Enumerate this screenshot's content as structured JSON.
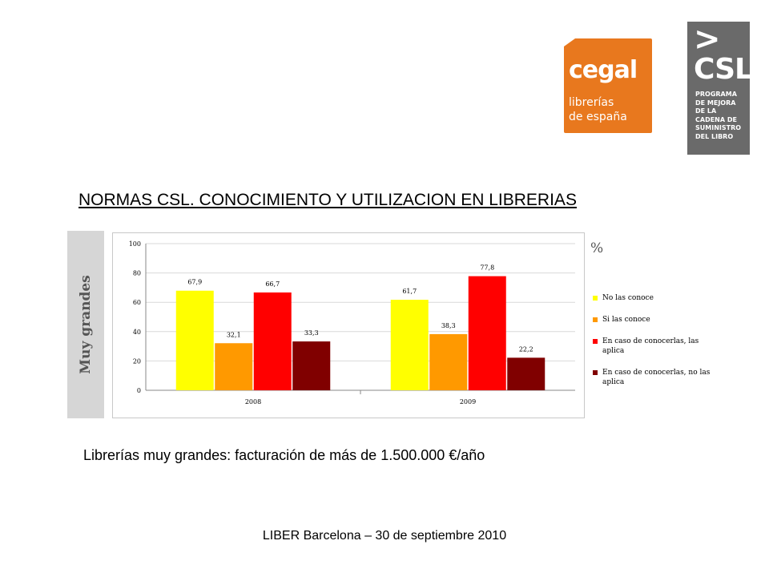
{
  "logos": {
    "cegal": {
      "brand": "cegal",
      "line1": "librerías",
      "line2": "de españa"
    },
    "csl": {
      "arrow": ">",
      "name": "CSL",
      "description": [
        "PROGRAMA",
        "DE MEJORA",
        "DE LA",
        "CADENA DE",
        "SUMINISTRO",
        "DEL LIBRO"
      ]
    }
  },
  "slide": {
    "title": "NORMAS CSL. CONOCIMIENTO Y UTILIZACION EN LIBRERIAS",
    "side_label": "Muy grandes",
    "unit_label": "%",
    "caption": "Librerías muy grandes: facturación de más de 1.500.000 €/año",
    "footer": "LIBER Barcelona – 30 de septiembre 2010"
  },
  "chart_data": {
    "type": "bar",
    "categories": [
      "2008",
      "2009"
    ],
    "ylim": [
      0,
      100
    ],
    "yticks": [
      0,
      20,
      40,
      60,
      80,
      100
    ],
    "series": [
      {
        "name": "No las conoce",
        "color": "#ffff00",
        "values": [
          67.9,
          61.7
        ],
        "labels": [
          "67,9",
          "61,7"
        ]
      },
      {
        "name": "Si las conoce",
        "color": "#ff9900",
        "values": [
          32.1,
          38.3
        ],
        "labels": [
          "32,1",
          "38,3"
        ]
      },
      {
        "name": "En caso de conocerlas, las aplica",
        "color": "#ff0000",
        "values": [
          66.7,
          77.8
        ],
        "labels": [
          "66,7",
          "77,8"
        ]
      },
      {
        "name": "En caso de conocerlas, no las aplica",
        "color": "#800000",
        "values": [
          33.3,
          22.2
        ],
        "labels": [
          "33,3",
          "22,2"
        ]
      }
    ]
  }
}
